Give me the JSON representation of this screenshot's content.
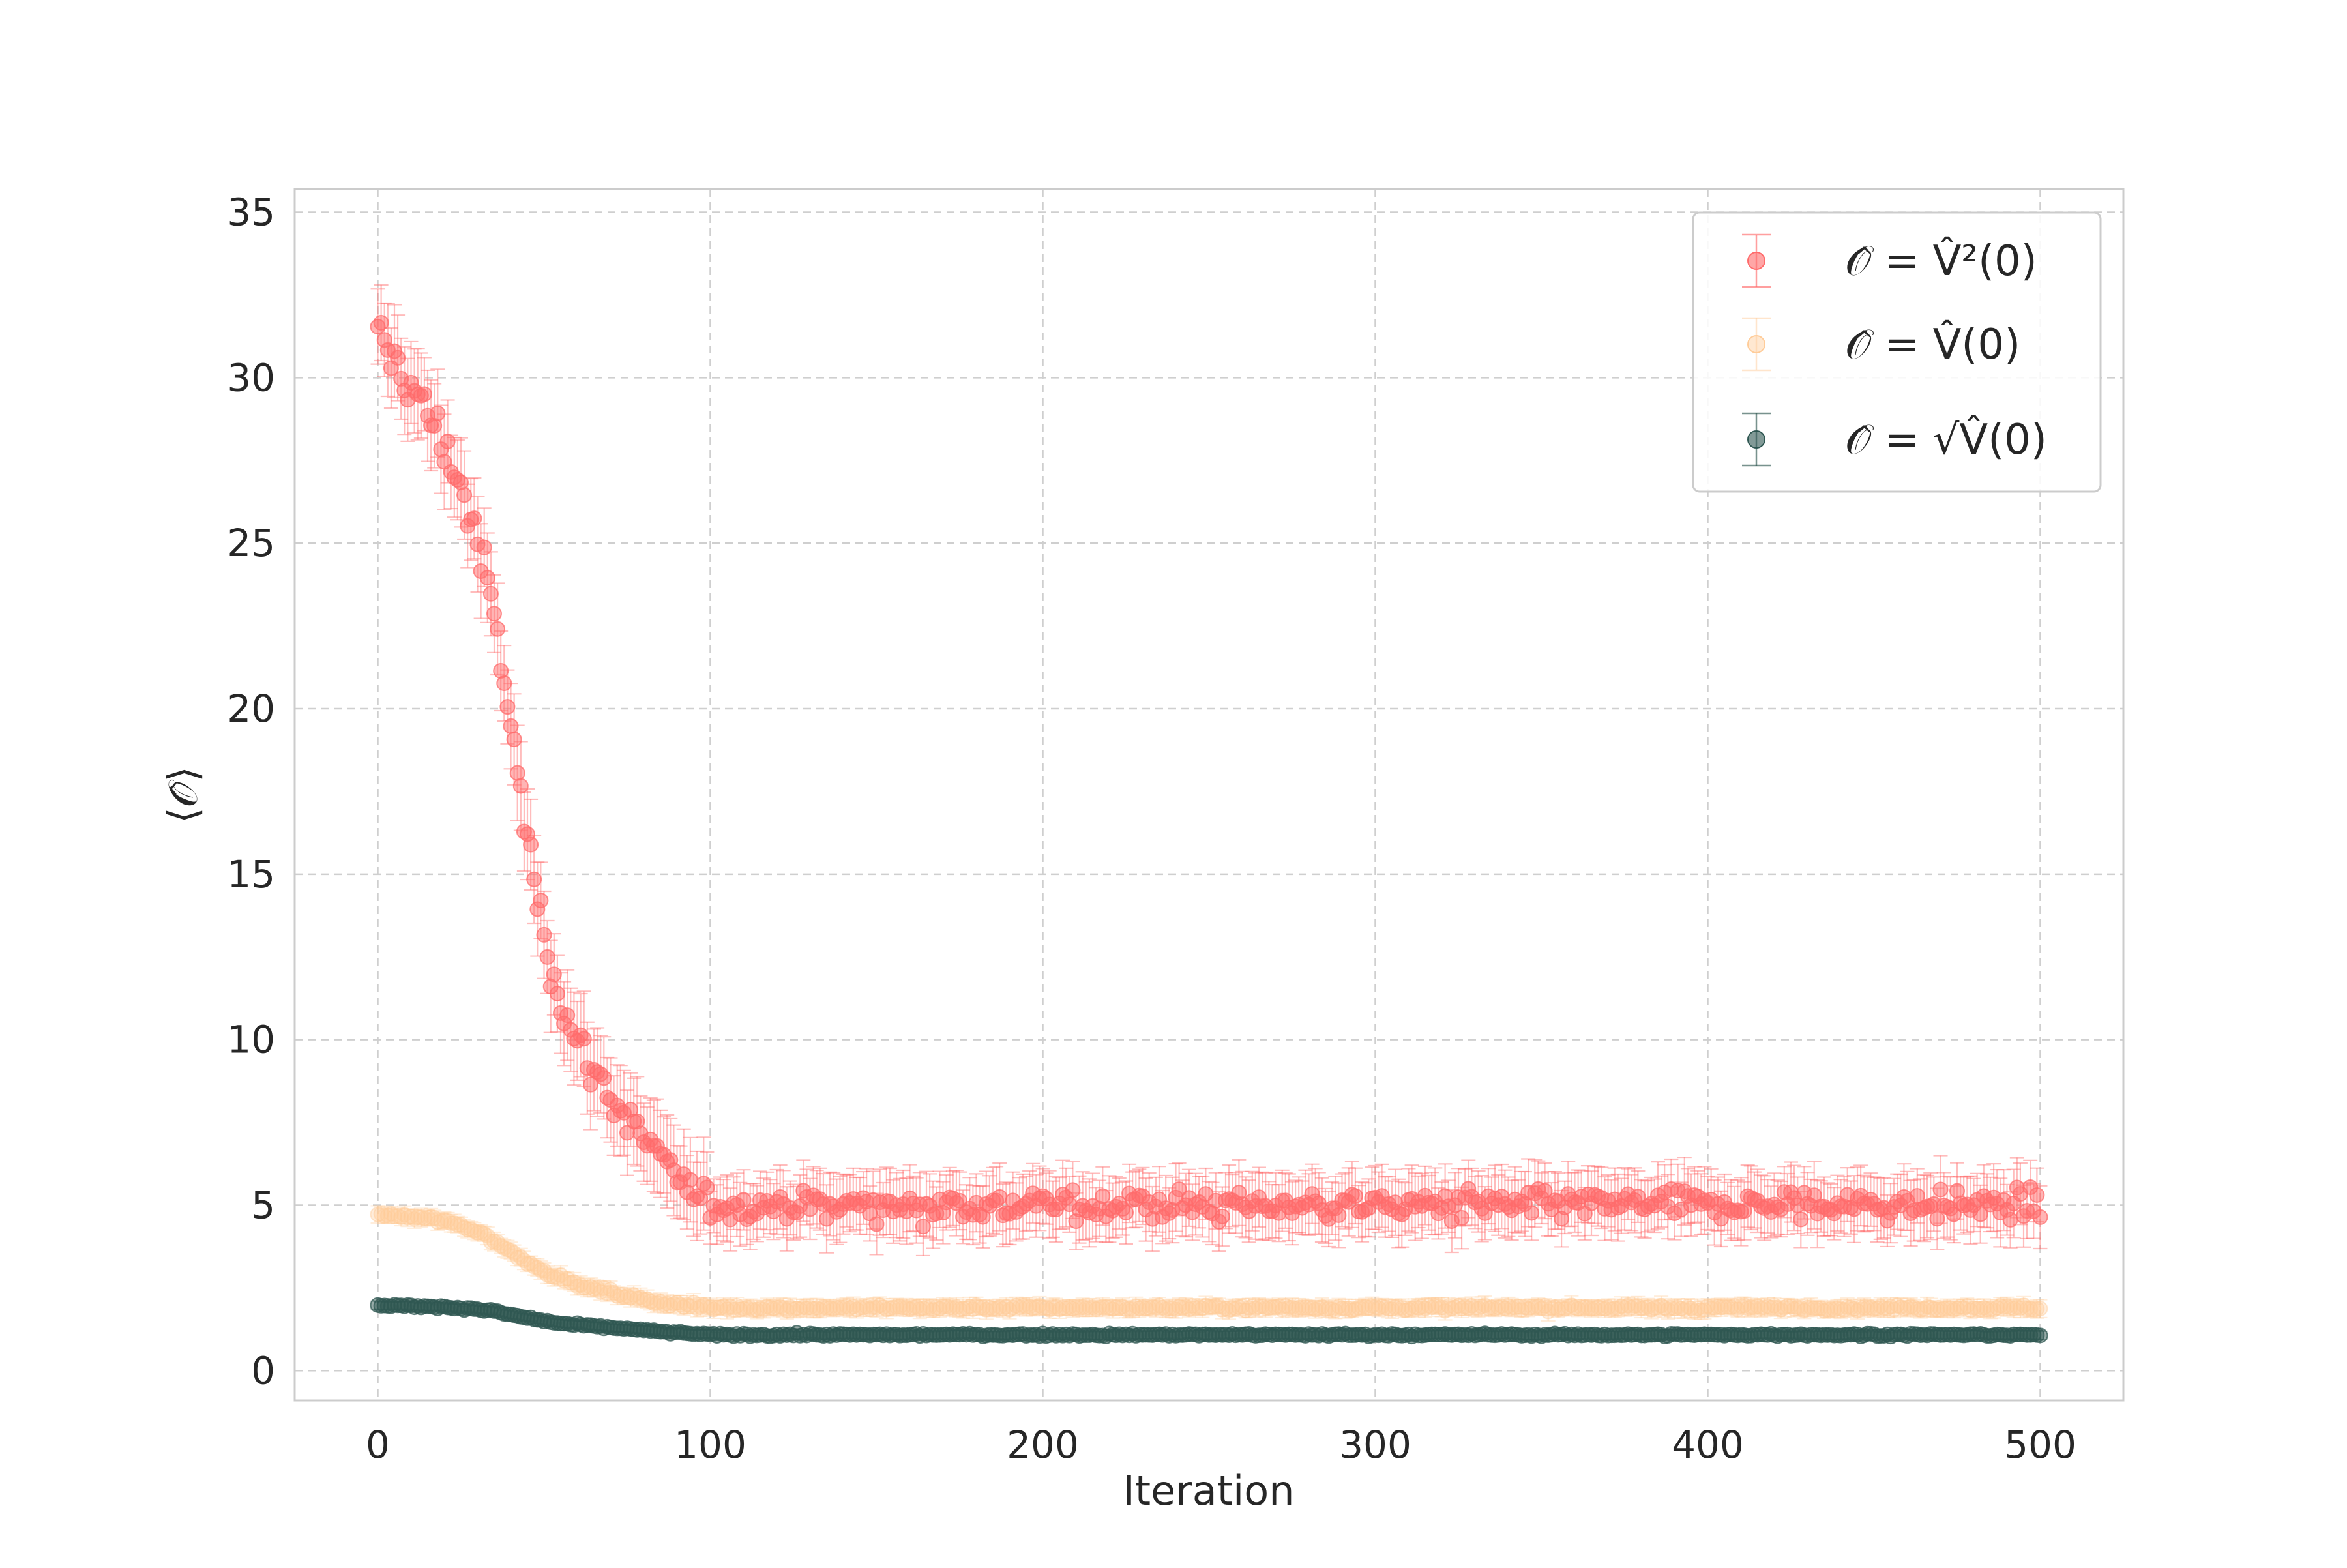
{
  "chart_data": {
    "type": "scatter",
    "xlabel": "Iteration",
    "ylabel": "⟨𝒪̂⟩",
    "xlim": [
      -25,
      525
    ],
    "ylim": [
      -0.9,
      35.7
    ],
    "x_ticks": [
      0,
      100,
      200,
      300,
      400,
      500
    ],
    "y_ticks": [
      0,
      5,
      10,
      15,
      20,
      25,
      30,
      35
    ],
    "grid": true,
    "error_bars": true,
    "legend_position": "upper right",
    "series": [
      {
        "name": "𝒪̂ = V̂²(0)",
        "color": "#ff6b6b",
        "keypoints": [
          [
            0,
            31.0
          ],
          [
            5,
            30.6
          ],
          [
            10,
            29.7
          ],
          [
            15,
            28.9
          ],
          [
            20,
            28.0
          ],
          [
            25,
            26.7
          ],
          [
            30,
            25.0
          ],
          [
            35,
            22.8
          ],
          [
            40,
            19.5
          ],
          [
            45,
            16.0
          ],
          [
            50,
            13.2
          ],
          [
            55,
            11.2
          ],
          [
            60,
            9.9
          ],
          [
            65,
            9.1
          ],
          [
            70,
            8.3
          ],
          [
            75,
            7.6
          ],
          [
            80,
            7.0
          ],
          [
            85,
            6.4
          ],
          [
            90,
            5.8
          ],
          [
            95,
            5.3
          ],
          [
            100,
            5.0
          ],
          [
            500,
            5.0
          ]
        ],
        "noise": 0.7,
        "error": 0.9
      },
      {
        "name": "𝒪̂ = V̂(0)",
        "color": "#ffcc99",
        "keypoints": [
          [
            0,
            4.7
          ],
          [
            15,
            4.6
          ],
          [
            25,
            4.4
          ],
          [
            32,
            4.1
          ],
          [
            40,
            3.6
          ],
          [
            50,
            3.0
          ],
          [
            60,
            2.6
          ],
          [
            70,
            2.35
          ],
          [
            80,
            2.15
          ],
          [
            90,
            2.0
          ],
          [
            100,
            1.9
          ],
          [
            500,
            1.9
          ]
        ],
        "noise": 0.12,
        "error": 0.25
      },
      {
        "name": "𝒪̂ = √V̂(0)",
        "color": "#2f5752",
        "keypoints": [
          [
            0,
            1.97
          ],
          [
            20,
            1.93
          ],
          [
            35,
            1.8
          ],
          [
            45,
            1.58
          ],
          [
            55,
            1.42
          ],
          [
            70,
            1.3
          ],
          [
            85,
            1.18
          ],
          [
            100,
            1.08
          ],
          [
            500,
            1.08
          ]
        ],
        "noise": 0.06,
        "error": 0.12
      }
    ]
  }
}
